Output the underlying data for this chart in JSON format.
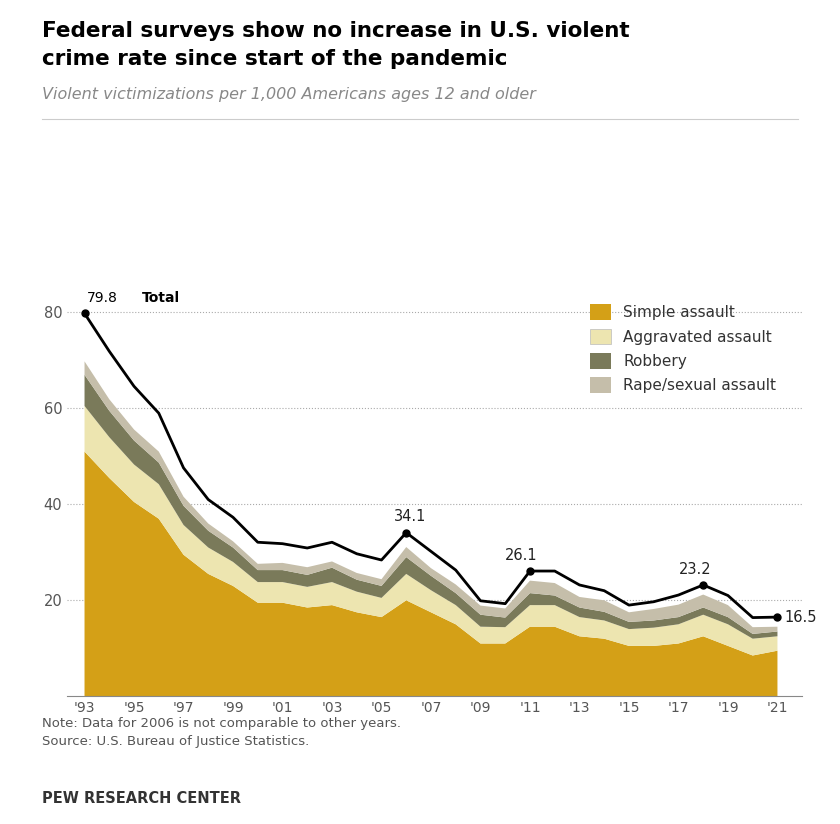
{
  "title_line1": "Federal surveys show no increase in U.S. violent",
  "title_line2": "crime rate since start of the pandemic",
  "subtitle": "Violent victimizations per 1,000 Americans ages 12 and older",
  "note": "Note: Data for 2006 is not comparable to other years.",
  "source": "Source: U.S. Bureau of Justice Statistics.",
  "footer": "PEW RESEARCH CENTER",
  "years": [
    1993,
    1994,
    1995,
    1996,
    1997,
    1998,
    1999,
    2000,
    2001,
    2002,
    2003,
    2004,
    2005,
    2006,
    2007,
    2008,
    2009,
    2010,
    2011,
    2012,
    2013,
    2014,
    2015,
    2016,
    2017,
    2018,
    2019,
    2020,
    2021
  ],
  "total": [
    79.8,
    71.9,
    64.6,
    59.0,
    47.6,
    41.0,
    37.3,
    32.1,
    31.8,
    30.9,
    32.1,
    29.7,
    28.4,
    34.1,
    30.2,
    26.3,
    19.9,
    19.3,
    26.1,
    26.1,
    23.2,
    22.0,
    19.0,
    19.7,
    21.1,
    23.2,
    21.0,
    16.4,
    16.5
  ],
  "simple_assault": [
    51.0,
    45.5,
    40.5,
    37.0,
    29.5,
    25.5,
    23.0,
    19.5,
    19.5,
    18.5,
    19.0,
    17.5,
    16.5,
    20.0,
    17.5,
    15.0,
    11.0,
    11.0,
    14.5,
    14.5,
    12.5,
    12.0,
    10.5,
    10.5,
    11.0,
    12.5,
    10.5,
    8.5,
    9.5
  ],
  "aggravated_assault": [
    9.5,
    8.5,
    7.8,
    7.2,
    6.2,
    5.5,
    5.0,
    4.3,
    4.3,
    4.3,
    4.8,
    4.3,
    4.0,
    5.5,
    4.6,
    4.0,
    3.5,
    3.4,
    4.5,
    4.5,
    4.0,
    3.8,
    3.5,
    3.8,
    4.0,
    4.5,
    4.5,
    3.5,
    3.0
  ],
  "robbery": [
    6.5,
    5.5,
    5.0,
    4.5,
    4.0,
    3.5,
    3.0,
    2.5,
    2.5,
    2.5,
    3.0,
    2.5,
    2.5,
    3.5,
    3.0,
    2.5,
    2.5,
    2.0,
    2.5,
    2.0,
    2.0,
    1.8,
    1.5,
    1.5,
    1.5,
    1.5,
    1.5,
    1.0,
    1.0
  ],
  "rape_sexual": [
    2.8,
    2.4,
    2.3,
    2.3,
    1.9,
    1.5,
    1.3,
    1.3,
    1.5,
    1.6,
    1.3,
    1.4,
    1.4,
    2.1,
    1.6,
    1.8,
    1.9,
    1.9,
    2.6,
    2.6,
    2.2,
    2.4,
    2.0,
    2.4,
    2.6,
    2.7,
    2.5,
    1.4,
    1.0
  ],
  "color_simple": "#D4A017",
  "color_aggravated": "#EDE5B0",
  "color_robbery": "#7A7A5A",
  "color_rape": "#C5BEAA",
  "ylim": [
    0,
    85
  ],
  "yticks": [
    20,
    40,
    60,
    80
  ],
  "xtick_years": [
    1993,
    1995,
    1997,
    1999,
    2001,
    2003,
    2005,
    2007,
    2009,
    2011,
    2013,
    2015,
    2017,
    2019,
    2021
  ]
}
